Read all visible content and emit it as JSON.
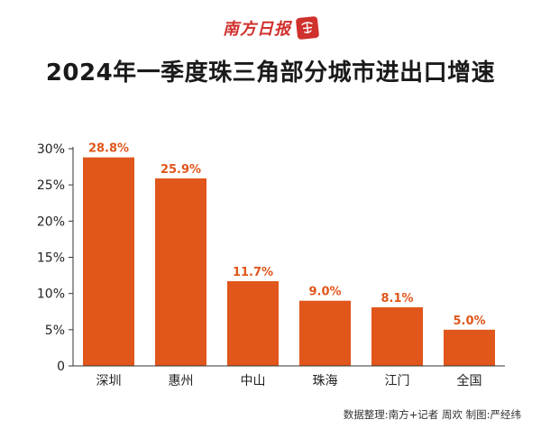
{
  "masthead": {
    "name": "南方日报"
  },
  "colors": {
    "bar": "#e0561b",
    "label": "#e0561b",
    "brand": "#d0312d"
  },
  "chart_data": {
    "type": "bar",
    "title": "2024年一季度珠三角部分城市进出口增速",
    "categories": [
      "深圳",
      "惠州",
      "中山",
      "珠海",
      "江门",
      "全国"
    ],
    "values": [
      28.8,
      25.9,
      11.7,
      9.0,
      8.1,
      5.0
    ],
    "value_labels": [
      "28.8%",
      "25.9%",
      "11.7%",
      "9.0%",
      "8.1%",
      "5.0%"
    ],
    "y_ticks": [
      "0",
      "5%",
      "10%",
      "15%",
      "20%",
      "25%",
      "30%"
    ],
    "ylim": [
      0,
      30
    ],
    "grid": false,
    "xlabel": "",
    "ylabel": ""
  },
  "footer": {
    "credit": "数据整理:南方+记者 周欢 制图:严经纬"
  }
}
